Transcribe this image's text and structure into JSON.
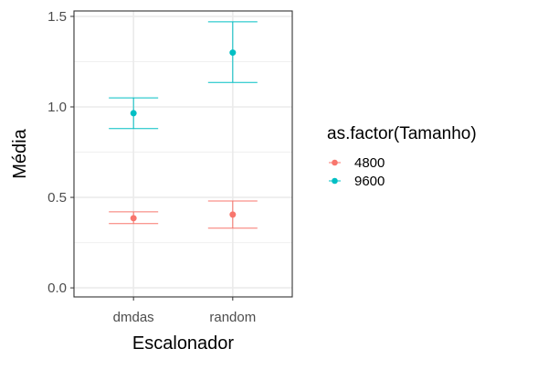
{
  "chart_data": {
    "type": "scatter",
    "xlabel": "Escalonador",
    "ylabel": "Média",
    "categories": [
      "dmdas",
      "random"
    ],
    "ylim": [
      -0.05,
      1.53
    ],
    "yticks": [
      0.0,
      0.5,
      1.0,
      1.5
    ],
    "ytick_labels": [
      "0.0",
      "0.5",
      "1.0",
      "1.5"
    ],
    "grid": true,
    "theme": "bw",
    "legend": {
      "title": "as.factor(Tamanho)",
      "position": "right",
      "entries": [
        "4800",
        "9600"
      ]
    },
    "series": [
      {
        "name": "4800",
        "color": "#F8766D",
        "points": [
          {
            "x": "dmdas",
            "y": 0.385,
            "ymin": 0.355,
            "ymax": 0.42
          },
          {
            "x": "random",
            "y": 0.405,
            "ymin": 0.33,
            "ymax": 0.48
          }
        ]
      },
      {
        "name": "9600",
        "color": "#00BFC4",
        "points": [
          {
            "x": "dmdas",
            "y": 0.965,
            "ymin": 0.88,
            "ymax": 1.05
          },
          {
            "x": "random",
            "y": 1.3,
            "ymin": 1.135,
            "ymax": 1.47
          }
        ]
      }
    ]
  }
}
